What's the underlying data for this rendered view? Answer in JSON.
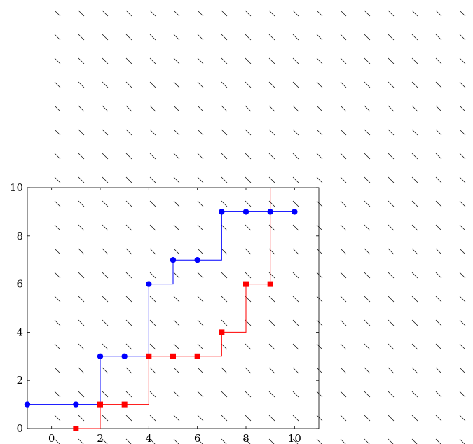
{
  "chart_data": {
    "type": "line",
    "title": "",
    "xlabel": "",
    "ylabel": "",
    "xlim": [
      -1,
      11
    ],
    "ylim": [
      0,
      10
    ],
    "xticks": [
      0,
      2,
      4,
      6,
      8,
      10
    ],
    "yticks": [
      0,
      2,
      4,
      6,
      8,
      10
    ],
    "grid": false,
    "background_pattern": "diagonal dashed hatching",
    "series": [
      {
        "color": "#0000ff",
        "marker": "circle",
        "step": "after",
        "x": [
          -1,
          1,
          2,
          3,
          4,
          5,
          6,
          7,
          8,
          9,
          10
        ],
        "y": [
          1,
          1,
          3,
          3,
          6,
          7,
          7,
          9,
          9,
          9,
          9
        ]
      },
      {
        "color": "#ff0000",
        "marker": "square",
        "step": "after",
        "x": [
          1,
          2,
          3,
          4,
          5,
          6,
          7,
          8,
          9
        ],
        "y": [
          0,
          1,
          1,
          3,
          3,
          3,
          4,
          6,
          6
        ],
        "final_step_to_y": 10
      }
    ]
  }
}
